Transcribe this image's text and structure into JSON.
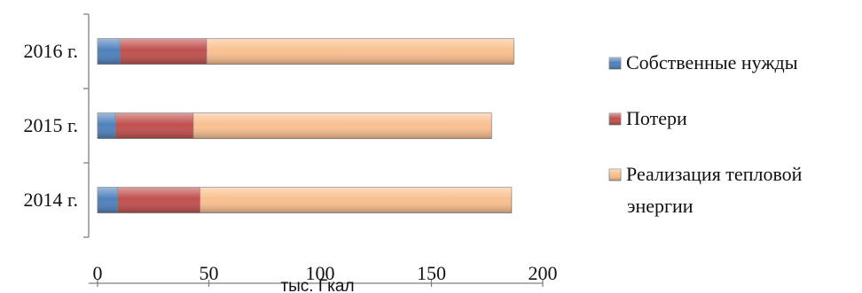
{
  "chart_data": {
    "type": "bar",
    "orientation": "horizontal",
    "stacked": true,
    "categories": [
      "2014 г.",
      "2015 г.",
      "2016 г."
    ],
    "series": [
      {
        "name": "Собственные нужды",
        "values": [
          9,
          8,
          10
        ],
        "color": "#4f81bd"
      },
      {
        "name": "Потери",
        "values": [
          37,
          35,
          39
        ],
        "color": "#c0504d"
      },
      {
        "name": "Реализация тепловой энергии",
        "values": [
          140,
          134,
          138
        ],
        "color": "#fac090"
      }
    ],
    "xlabel": "тыс. Гкал",
    "xlim": [
      0,
      200
    ],
    "xticks": [
      0,
      50,
      100,
      150,
      200
    ],
    "grid": false,
    "legend_position": "right"
  }
}
